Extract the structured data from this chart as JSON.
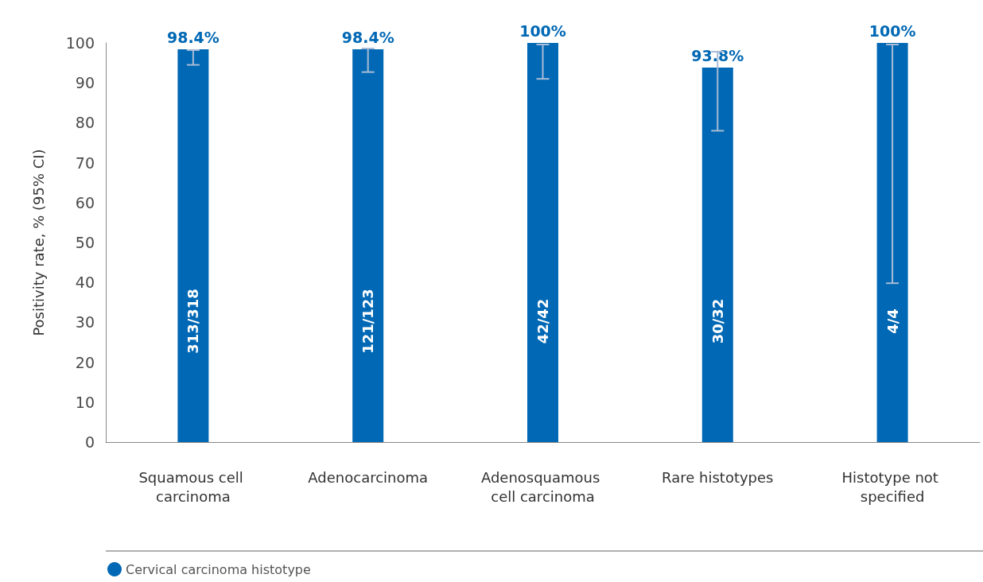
{
  "chart_data": {
    "type": "bar",
    "ylabel": "Positivity rate, % (95% CI)",
    "categories": [
      "Squamous cell carcinoma",
      "Adenocarcinoma",
      "Adenosquamous cell carcinoma",
      "Rare histotypes",
      "Histotype not specified"
    ],
    "series": [
      {
        "name": "Cervical carcinoma histotype",
        "color": "#0068b4",
        "values": [
          98.4,
          98.4,
          100,
          93.8,
          100
        ],
        "value_labels": [
          "98.4%",
          "98.4%",
          "100%",
          "93.8%",
          "100%"
        ],
        "errors": [
          [
            94.5,
            98.2
          ],
          [
            92.7,
            98.6
          ],
          [
            91.0,
            99.6
          ],
          [
            78.0,
            97.8
          ],
          [
            39.8,
            99.6
          ]
        ]
      }
    ],
    "ylim": [
      0,
      100
    ],
    "yticks": [
      0,
      10,
      20,
      30,
      40,
      50,
      60,
      70,
      80,
      90,
      100
    ],
    "grid": false,
    "legend": "bottom left",
    "annotations": [
      "313/318",
      "121/123",
      "42/42",
      "30/32",
      "4/4"
    ]
  }
}
